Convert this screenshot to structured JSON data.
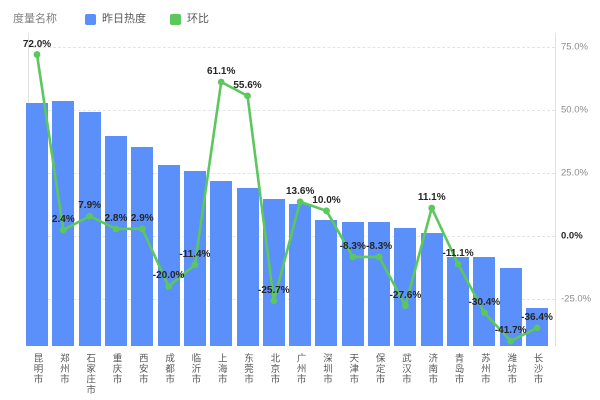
{
  "legend": {
    "title": "度量名称",
    "items": [
      {
        "label": "昨日热度",
        "color": "#5b8ff9",
        "icon": "blue-square-swatch"
      },
      {
        "label": "环比",
        "color": "#5bc75d",
        "icon": "green-square-swatch"
      }
    ]
  },
  "right_axis": {
    "ticks": [
      {
        "label": "75.0%",
        "value": 75,
        "emphasis": false
      },
      {
        "label": "50.0%",
        "value": 50,
        "emphasis": false
      },
      {
        "label": "25.0%",
        "value": 25,
        "emphasis": false
      },
      {
        "label": "0.0%",
        "value": 0,
        "emphasis": true
      },
      {
        "label": "-25.0%",
        "value": -25,
        "emphasis": false
      }
    ]
  },
  "chart_data": {
    "type": "bar",
    "title": "",
    "legend_position": "top-left",
    "grid": "horizontal-dashed",
    "categories": [
      "昆明市",
      "郑州市",
      "石家庄市",
      "重庆市",
      "西安市",
      "成都市",
      "临沂市",
      "上海市",
      "东莞市",
      "北京市",
      "广州市",
      "深圳市",
      "天津市",
      "保定市",
      "武汉市",
      "济南市",
      "青岛市",
      "苏州市",
      "潍坊市",
      "长沙市"
    ],
    "series": [
      {
        "name": "昨日热度",
        "type": "bar",
        "color": "#5b8ff9",
        "values_pct_of_max": [
          99.2,
          100,
          95.5,
          85.7,
          81.2,
          73.9,
          71.4,
          67.3,
          64.5,
          60.0,
          58.0,
          51.4,
          50.6,
          50.6,
          48.2,
          46.1,
          36.3,
          36.3,
          31.8,
          15.5
        ]
      },
      {
        "name": "环比",
        "type": "line",
        "color": "#5bc75d",
        "unit": "%",
        "values": [
          72.0,
          2.4,
          7.9,
          2.8,
          2.9,
          -20.0,
          -11.4,
          61.1,
          55.6,
          -25.7,
          13.6,
          10.0,
          -8.3,
          -8.3,
          -27.6,
          11.1,
          -11.1,
          -30.4,
          -41.7,
          -36.4
        ]
      }
    ],
    "right_axis_ticks": [
      "75.0%",
      "50.0%",
      "25.0%",
      "0.0%",
      "-25.0%"
    ]
  }
}
